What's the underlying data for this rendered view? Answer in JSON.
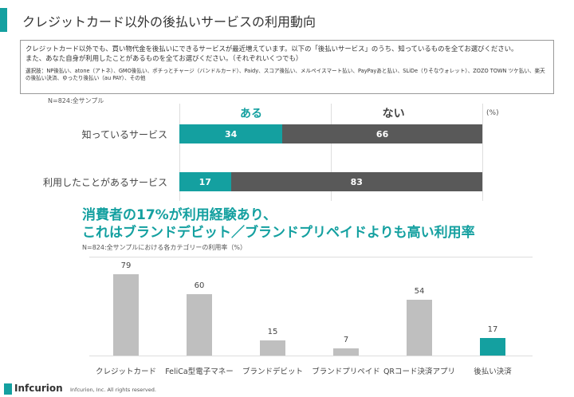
{
  "title": "クレジットカード以外の後払いサービスの利用動向",
  "question": {
    "line1": "クレジットカード以外でも、買い物代金を後払いにできるサービスが最近増えています。以下の「後払いサービス」のうち、知っているものを全てお選びください。",
    "line2": "また、あなた自身が利用したことがあるものを全てお選びください。（それぞれいくつでも）",
    "options": "選択肢：NP後払い、atone（アトネ）、GMO後払い、ポチっとチャージ（バンドルカード）、Paidy、スコア後払い、メルペイスマート払い、PayPayあと払い、SLiDe（りそなウォレット）、ZOZO TOWN ツケ払い、楽天の後払い決済、ゆったり後払い（au PAY）、その他"
  },
  "sample_note": "N=824:全サンプル",
  "headline": {
    "line1": "消費者の17%が利用経験あり、",
    "line2": "これはブランドデビット／ブランドプリペイドよりも高い利用率"
  },
  "sample_note2": "N=824:全サンプルにおける各カテゴリーの利用率（%）",
  "footer": {
    "brand": "Infcurion",
    "copyright": "Infcurion, Inc.  All rights reserved."
  },
  "colors": {
    "accent": "#14a0a0",
    "no": "#595959",
    "bar": "#bfbfbf"
  },
  "chart_data": [
    {
      "type": "bar",
      "orientation": "horizontal",
      "stacked": true,
      "unit": "(%)",
      "categories": [
        "知っているサービス",
        "利用したことがあるサービス"
      ],
      "series": [
        {
          "name": "ある",
          "values": [
            34,
            17
          ]
        },
        {
          "name": "ない",
          "values": [
            66,
            83
          ]
        }
      ],
      "xlim": [
        0,
        100
      ]
    },
    {
      "type": "bar",
      "categories": [
        "クレジットカード",
        "FeliCa型電子マネー",
        "ブランドデビット",
        "ブランドプリペイド",
        "QRコード決済アプリ",
        "後払い決済"
      ],
      "values": [
        79,
        60,
        15,
        7,
        54,
        17
      ],
      "highlight": "後払い決済",
      "ylim": [
        0,
        80
      ]
    }
  ]
}
